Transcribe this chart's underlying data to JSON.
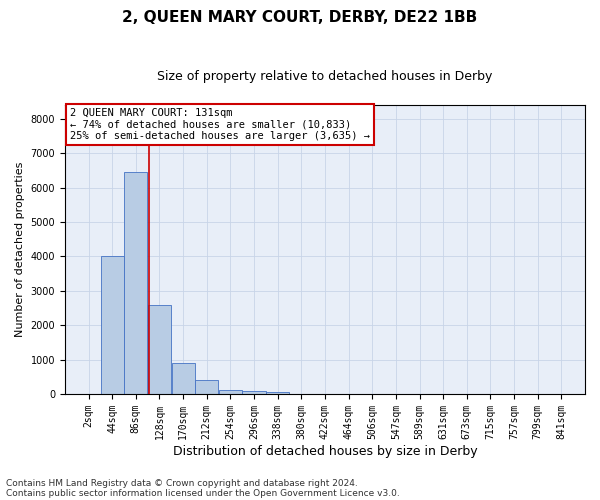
{
  "title": "2, QUEEN MARY COURT, DERBY, DE22 1BB",
  "subtitle": "Size of property relative to detached houses in Derby",
  "xlabel": "Distribution of detached houses by size in Derby",
  "ylabel": "Number of detached properties",
  "footnote1": "Contains HM Land Registry data © Crown copyright and database right 2024.",
  "footnote2": "Contains public sector information licensed under the Open Government Licence v3.0.",
  "annotation_line1": "2 QUEEN MARY COURT: 131sqm",
  "annotation_line2": "← 74% of detached houses are smaller (10,833)",
  "annotation_line3": "25% of semi-detached houses are larger (3,635) →",
  "bar_labels": [
    "2sqm",
    "44sqm",
    "86sqm",
    "128sqm",
    "170sqm",
    "212sqm",
    "254sqm",
    "296sqm",
    "338sqm",
    "380sqm",
    "422sqm",
    "464sqm",
    "506sqm",
    "547sqm",
    "589sqm",
    "631sqm",
    "673sqm",
    "715sqm",
    "757sqm",
    "799sqm",
    "841sqm"
  ],
  "bar_values": [
    10,
    4000,
    6450,
    2600,
    900,
    400,
    130,
    100,
    60,
    0,
    0,
    0,
    0,
    0,
    0,
    0,
    0,
    0,
    0,
    0,
    0
  ],
  "bar_color": "#b8cce4",
  "bar_edge_color": "#4472c4",
  "vline_color": "#cc0000",
  "vline_x": 131,
  "ylim": [
    0,
    8400
  ],
  "yticks": [
    0,
    1000,
    2000,
    3000,
    4000,
    5000,
    6000,
    7000,
    8000
  ],
  "grid_color": "#c8d4e8",
  "axes_bg_color": "#e8eef8",
  "fig_bg_color": "#ffffff",
  "annotation_box_bg": "#ffffff",
  "annotation_box_edge": "#cc0000",
  "title_fontsize": 11,
  "subtitle_fontsize": 9,
  "xlabel_fontsize": 9,
  "ylabel_fontsize": 8,
  "tick_fontsize": 7,
  "annotation_fontsize": 7.5,
  "footnote_fontsize": 6.5
}
